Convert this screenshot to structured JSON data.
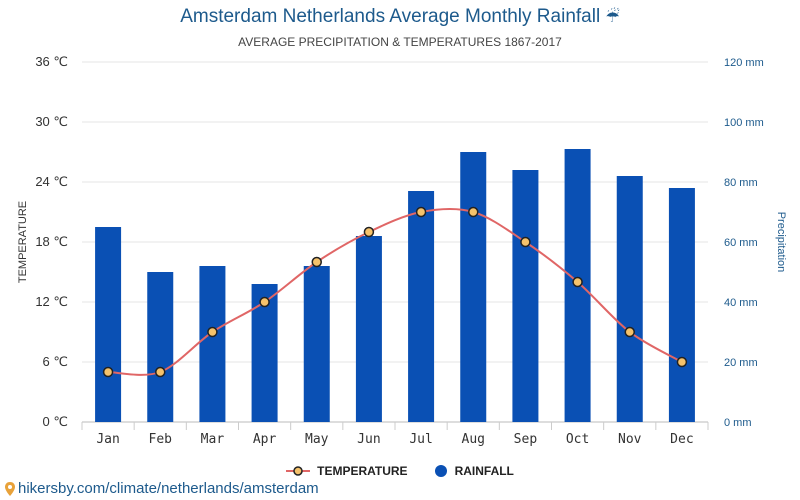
{
  "title": "Amsterdam Netherlands Average Monthly Rainfall",
  "title_icon": "umbrella-rain-icon",
  "subtitle": "AVERAGE PRECIPITATION & TEMPERATURES 1867-2017",
  "source": "hikersby.com/climate/netherlands/amsterdam",
  "colors": {
    "rainfall_bar": "#0a50b4",
    "temperature_line": "#e06666",
    "marker_fill": "#f5c26b",
    "right_axis_text": "#1d5a8c",
    "grid": "#e6e6e6"
  },
  "legend": {
    "temperature": "TEMPERATURE",
    "rainfall": "RAINFALL"
  },
  "chart_data": {
    "type": "bar",
    "title": "Amsterdam Netherlands Average Monthly Rainfall",
    "categories": [
      "Jan",
      "Feb",
      "Mar",
      "Apr",
      "May",
      "Jun",
      "Jul",
      "Aug",
      "Sep",
      "Oct",
      "Nov",
      "Dec"
    ],
    "series": [
      {
        "name": "RAINFALL",
        "type": "bar",
        "axis": "right",
        "unit": "mm",
        "values": [
          65,
          50,
          52,
          46,
          52,
          62,
          77,
          90,
          84,
          91,
          82,
          78
        ]
      },
      {
        "name": "TEMPERATURE",
        "type": "line",
        "axis": "left",
        "unit": "℃",
        "values": [
          5,
          5,
          9,
          12,
          16,
          19,
          21,
          21,
          18,
          14,
          9,
          6
        ]
      }
    ],
    "ylabel_left": "TEMPERATURE",
    "ylabel_right": "Precipitation",
    "ylim_left": [
      0,
      36
    ],
    "ylim_right": [
      0,
      120
    ],
    "yticks_left": [
      "0 ℃",
      "6 ℃",
      "12 ℃",
      "18 ℃",
      "24 ℃",
      "30 ℃",
      "36 ℃"
    ],
    "yticks_right": [
      "0 mm",
      "20 mm",
      "40 mm",
      "60 mm",
      "80 mm",
      "100 mm",
      "120 mm"
    ],
    "grid": true,
    "legend_position": "bottom-center"
  }
}
